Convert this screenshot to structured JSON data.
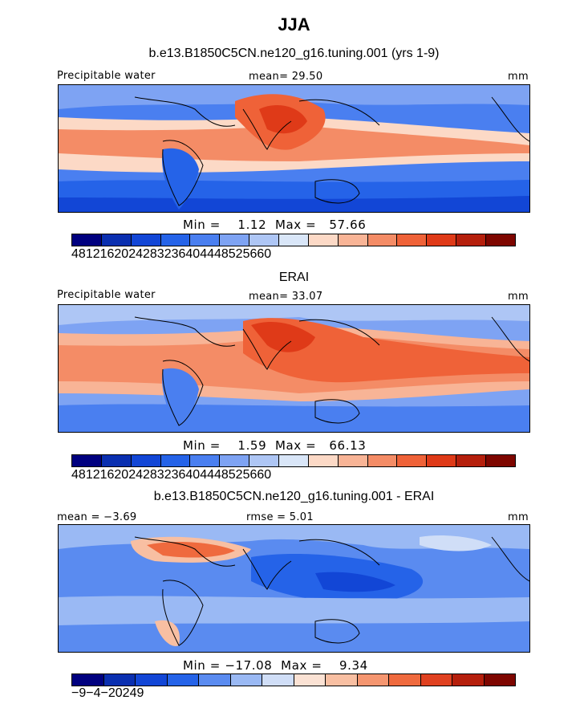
{
  "title": "JJA",
  "panels": [
    {
      "heading": "b.e13.B1850C5CN.ne120_g16.tuning.001 (yrs 1-9)",
      "left_label": "Precipitable water",
      "center_label": "mean=  29.50",
      "right_label": "mm",
      "minmax": "Min =    1.12  Max =   57.66",
      "ticks": [
        "4",
        "8",
        "12",
        "16",
        "20",
        "24",
        "28",
        "32",
        "36",
        "40",
        "44",
        "48",
        "52",
        "56",
        "60"
      ]
    },
    {
      "heading": "ERAI",
      "left_label": "Precipitable water",
      "center_label": "mean=  33.07",
      "right_label": "mm",
      "minmax": "Min =    1.59  Max =   66.13",
      "ticks": [
        "4",
        "8",
        "12",
        "16",
        "20",
        "24",
        "28",
        "32",
        "36",
        "40",
        "44",
        "48",
        "52",
        "56",
        "60"
      ]
    },
    {
      "heading": "b.e13.B1850C5CN.ne120_g16.tuning.001 - ERAI",
      "left_label": "mean =  −3.69",
      "center_label": "rmse =   5.01",
      "right_label": "mm",
      "minmax": "Min = −17.08  Max =    9.34",
      "ticks": [
        "−9",
        "−4",
        "−2",
        "0",
        "2",
        "4",
        "9"
      ]
    }
  ],
  "palette": [
    "#00007f",
    "#0a2fb0",
    "#1246d6",
    "#2563e8",
    "#4a7ff0",
    "#7ea3f3",
    "#aec6f5",
    "#d9e6f8",
    "#fcd9c6",
    "#f8b496",
    "#f48c66",
    "#ef6238",
    "#df3a18",
    "#b51f0c",
    "#7e0600"
  ],
  "diff_palette": [
    "#00007f",
    "#0a2fb0",
    "#1246d6",
    "#2563e8",
    "#5a8bf0",
    "#9ab9f4",
    "#d0def7",
    "#fbe2d4",
    "#f8bfa2",
    "#f59670",
    "#ef6a3e",
    "#e04120",
    "#b51f0c",
    "#7e0600"
  ]
}
